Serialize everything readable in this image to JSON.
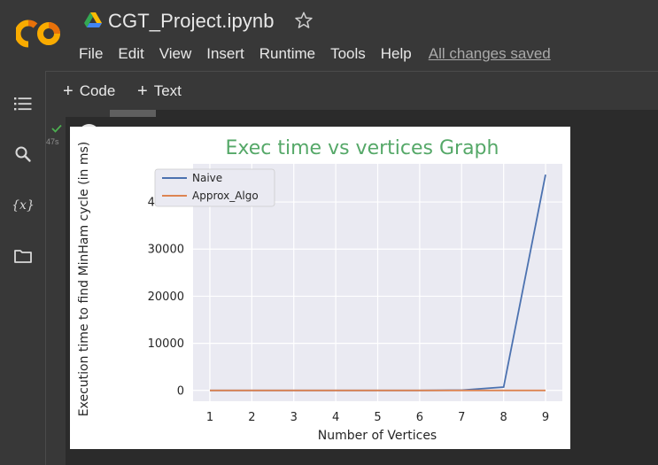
{
  "header": {
    "title": "CGT_Project.ipynb",
    "menu": [
      "File",
      "Edit",
      "View",
      "Insert",
      "Runtime",
      "Tools",
      "Help"
    ],
    "save_status": "All changes saved"
  },
  "toolbar": {
    "add_code_label": "Code",
    "add_text_label": "Text"
  },
  "cell": {
    "exec_time": "47s",
    "status": "success"
  },
  "colors": {
    "naive": "#4c72b0",
    "approx": "#dd8452",
    "title": "#55a868",
    "plot_bg": "#eaeaf2"
  },
  "chart_data": {
    "type": "line",
    "title": "Exec time vs vertices Graph",
    "xlabel": "Number of Vertices",
    "ylabel": "Execution time to find MinHam cycle (in ms)",
    "x": [
      1,
      2,
      3,
      4,
      5,
      6,
      7,
      8,
      9
    ],
    "series": [
      {
        "name": "Naive",
        "values": [
          0,
          0,
          0,
          0,
          0,
          0,
          50,
          700,
          45800
        ]
      },
      {
        "name": "Approx_Algo",
        "values": [
          0,
          0,
          0,
          0,
          0,
          0,
          0,
          0,
          0
        ]
      }
    ],
    "xticks": [
      "1",
      "2",
      "3",
      "4",
      "5",
      "6",
      "7",
      "8",
      "9"
    ],
    "yticks": [
      "0",
      "10000",
      "20000",
      "30000",
      "40000"
    ],
    "ytick_values": [
      0,
      10000,
      20000,
      30000,
      40000
    ],
    "xlim": [
      0.6,
      9.4
    ],
    "ylim": [
      -2300,
      48100
    ],
    "grid": true,
    "legend_position": "top-left"
  }
}
